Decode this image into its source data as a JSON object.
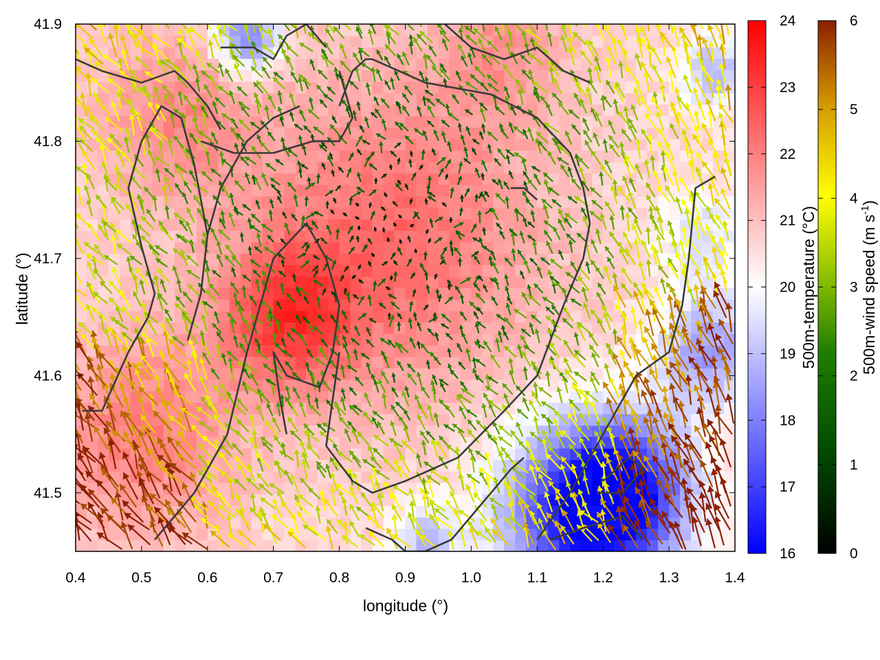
{
  "chart_data": {
    "type": "heatmap",
    "title": "",
    "xlabel": "longitude (°)",
    "ylabel": "latitude (°)",
    "xlim": [
      0.4,
      1.4
    ],
    "ylim": [
      41.45,
      41.9
    ],
    "x_ticks": [
      0.4,
      0.5,
      0.6,
      0.7,
      0.8,
      0.9,
      1.0,
      1.1,
      1.2,
      1.3,
      1.4
    ],
    "x_tick_labels": [
      "0.4",
      "0.5",
      "0.6",
      "0.7",
      "0.8",
      "0.9",
      "1.0",
      "1.1",
      "1.2",
      "1.3",
      "1.4"
    ],
    "y_ticks": [
      41.5,
      41.6,
      41.7,
      41.8,
      41.9
    ],
    "y_tick_labels": [
      "41.5",
      "41.6",
      "41.7",
      "41.8",
      "41.9"
    ],
    "colorbars": [
      {
        "label": "500m-temperature (°C)",
        "range": [
          16,
          24
        ],
        "ticks": [
          16,
          17,
          18,
          19,
          20,
          21,
          22,
          23,
          24
        ],
        "tick_labels": [
          "16",
          "17",
          "18",
          "19",
          "20",
          "21",
          "22",
          "23",
          "24"
        ],
        "colors": [
          "#0000ff",
          "#ffffff",
          "#ff0000"
        ]
      },
      {
        "label_main": "500m-wind speed (m s",
        "label_sup": "-1",
        "label_end": ")",
        "range": [
          0,
          6
        ],
        "ticks": [
          0,
          1,
          2,
          3,
          4,
          5,
          6
        ],
        "tick_labels": [
          "0",
          "1",
          "2",
          "3",
          "4",
          "5",
          "6"
        ],
        "colors": [
          "#000000",
          "#005000",
          "#2a8a00",
          "#9fc800",
          "#ffff00",
          "#d9a000",
          "#8b2000"
        ]
      }
    ],
    "temperature_features": [
      {
        "lon": 0.88,
        "lat": 41.72,
        "value": 22.3,
        "radius": 0.22
      },
      {
        "lon": 0.72,
        "lat": 41.65,
        "value": 22.6,
        "radius": 0.1
      },
      {
        "lon": 0.55,
        "lat": 41.82,
        "value": 21.8,
        "radius": 0.12
      },
      {
        "lon": 1.05,
        "lat": 41.88,
        "value": 21.5,
        "radius": 0.1
      },
      {
        "lon": 0.5,
        "lat": 41.55,
        "value": 22.0,
        "radius": 0.14
      },
      {
        "lon": 1.23,
        "lat": 41.5,
        "value": 16.5,
        "radius": 0.1
      },
      {
        "lon": 1.15,
        "lat": 41.48,
        "value": 17.5,
        "radius": 0.12
      },
      {
        "lon": 1.36,
        "lat": 41.62,
        "value": 18.5,
        "radius": 0.08
      },
      {
        "lon": 0.66,
        "lat": 41.89,
        "value": 17.8,
        "radius": 0.05
      },
      {
        "lon": 1.37,
        "lat": 41.86,
        "value": 18.8,
        "radius": 0.05
      },
      {
        "lon": 1.35,
        "lat": 41.72,
        "value": 19.5,
        "radius": 0.07
      },
      {
        "lon": 0.93,
        "lat": 41.46,
        "value": 19.0,
        "radius": 0.05
      }
    ],
    "terrain_contours": [
      {
        "lon": [
          0.8,
          0.82,
          0.84,
          0.85,
          0.93,
          1.03,
          1.1,
          1.15,
          1.17,
          1.18,
          1.17,
          1.14,
          1.12,
          1.1,
          1.05,
          0.98,
          0.9,
          0.85,
          0.82,
          0.78,
          0.79,
          0.8
        ],
        "lat": [
          41.83,
          41.86,
          41.87,
          41.87,
          41.85,
          41.84,
          41.82,
          41.79,
          41.76,
          41.73,
          41.7,
          41.66,
          41.63,
          41.6,
          41.57,
          41.53,
          41.51,
          41.5,
          41.51,
          41.54,
          41.58,
          41.62
        ]
      },
      {
        "lon": [
          0.59,
          0.64,
          0.7,
          0.76,
          0.8,
          0.82,
          0.8
        ],
        "lat": [
          41.8,
          41.79,
          41.79,
          41.8,
          41.8,
          41.82,
          41.86
        ]
      },
      {
        "lon": [
          0.52,
          0.58,
          0.63,
          0.66,
          0.7,
          0.75,
          0.78,
          0.8,
          0.79,
          0.77,
          0.72,
          0.7,
          0.71,
          0.72
        ],
        "lat": [
          41.46,
          41.5,
          41.55,
          41.62,
          41.7,
          41.73,
          41.7,
          41.66,
          41.62,
          41.59,
          41.6,
          41.62,
          41.58,
          41.55
        ]
      },
      {
        "lon": [
          0.57,
          0.59,
          0.6,
          0.62,
          0.66,
          0.7,
          0.74
        ],
        "lat": [
          41.63,
          41.67,
          41.72,
          41.76,
          41.8,
          41.82,
          41.83
        ]
      },
      {
        "lon": [
          0.4,
          0.44,
          0.5,
          0.55,
          0.57,
          0.6,
          0.62
        ],
        "lat": [
          41.87,
          41.86,
          41.85,
          41.86,
          41.85,
          41.83,
          41.81
        ]
      },
      {
        "lon": [
          0.41,
          0.44,
          0.48,
          0.51,
          0.52,
          0.5,
          0.48,
          0.5,
          0.53,
          0.56,
          0.58,
          0.6
        ],
        "lat": [
          41.57,
          41.57,
          41.62,
          41.65,
          41.67,
          41.71,
          41.76,
          41.8,
          41.83,
          41.82,
          41.78,
          41.72
        ]
      },
      {
        "lon": [
          1.1,
          1.15,
          1.2,
          1.25,
          1.3,
          1.32,
          1.33,
          1.34,
          1.37
        ],
        "lat": [
          41.46,
          41.5,
          41.55,
          41.6,
          41.62,
          41.66,
          41.7,
          41.76,
          41.77
        ]
      },
      {
        "lon": [
          1.12,
          1.17,
          1.23,
          1.26
        ],
        "lat": [
          41.46,
          41.47,
          41.48,
          41.46
        ]
      },
      {
        "lon": [
          1.19,
          1.23,
          1.26,
          1.24,
          1.2
        ],
        "lat": [
          41.5,
          41.5,
          41.52,
          41.53,
          41.51
        ]
      },
      {
        "lon": [
          0.84,
          0.88,
          0.9,
          0.93,
          0.97,
          1.0,
          1.03,
          1.06,
          1.08
        ],
        "lat": [
          41.47,
          41.46,
          41.45,
          41.45,
          41.46,
          41.48,
          41.5,
          41.52,
          41.53
        ]
      },
      {
        "lon": [
          0.62,
          0.67,
          0.7,
          0.72,
          0.75,
          0.78
        ],
        "lat": [
          41.88,
          41.88,
          41.87,
          41.89,
          41.9,
          41.88
        ]
      },
      {
        "lon": [
          0.96,
          1.0,
          1.05,
          1.1,
          1.14,
          1.18
        ],
        "lat": [
          41.9,
          41.88,
          41.87,
          41.88,
          41.86,
          41.85
        ]
      },
      {
        "lon": [
          1.06,
          1.08,
          1.1
        ],
        "lat": [
          41.76,
          41.76,
          41.75
        ]
      }
    ],
    "wind_features": {
      "calm_center": {
        "lon": 0.88,
        "lat": 41.72
      },
      "prevailing_direction": "from south-east, turning north-westward",
      "max_speed_region": "south-west and south-east corners"
    }
  }
}
